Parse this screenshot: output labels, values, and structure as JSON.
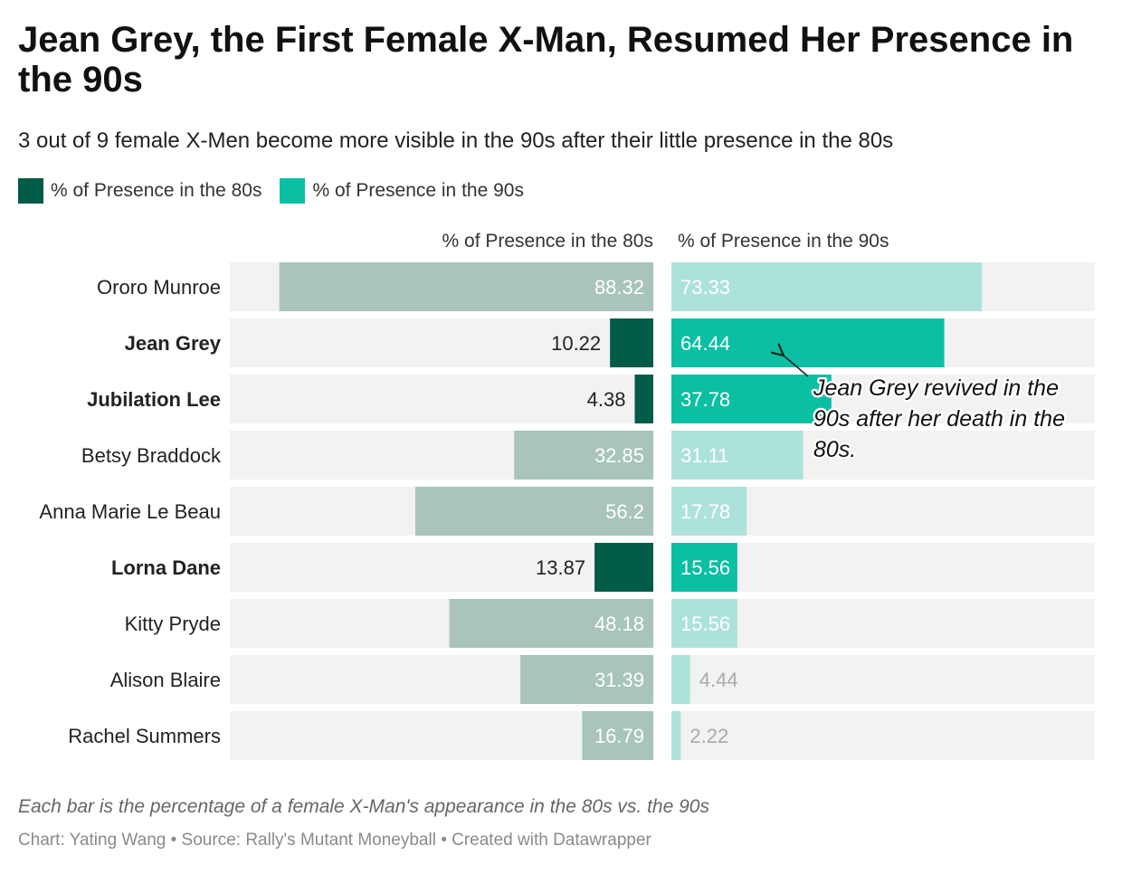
{
  "title": "Jean Grey, the First Female X-Man, Resumed Her Presence in the 90s",
  "subtitle": "3 out of 9 female X-Men become more visible in the 90s after their little presence in the 80s",
  "legend": {
    "items": [
      {
        "label": "% of Presence in the 80s",
        "color": "#005b47"
      },
      {
        "label": "% of Presence in the 90s",
        "color": "#0abfa2"
      }
    ]
  },
  "chart_data": {
    "type": "bar",
    "columns": [
      {
        "name": "% of Presence in the 80s",
        "xlim": [
          0,
          100
        ]
      },
      {
        "name": "% of Presence in the 90s",
        "xlim": [
          0,
          100
        ]
      }
    ],
    "categories": [
      "Ororo Munroe",
      "Jean Grey",
      "Jubilation Lee",
      "Betsy Braddock",
      "Anna Marie Le Beau",
      "Lorna Dane",
      "Kitty Pryde",
      "Alison Blaire",
      "Rachel Summers"
    ],
    "highlighted": [
      "Jean Grey",
      "Jubilation Lee",
      "Lorna Dane"
    ],
    "series": [
      {
        "name": "% of Presence in the 80s",
        "values": [
          88.32,
          10.22,
          4.38,
          32.85,
          56.2,
          13.87,
          48.18,
          31.39,
          16.79
        ]
      },
      {
        "name": "% of Presence in the 90s",
        "values": [
          73.33,
          64.44,
          37.78,
          31.11,
          17.78,
          15.56,
          15.56,
          4.44,
          2.22
        ]
      }
    ],
    "colors": {
      "highlight_80s": "#005b47",
      "highlight_90s": "#0abfa2",
      "muted_80s": "#a8c4bc",
      "muted_90s": "#ade2da",
      "track": "#f2f2f2"
    },
    "annotation": {
      "text_lines": [
        "Jean Grey revived in the",
        "90s after her death in the",
        "80s."
      ],
      "target": "Jean Grey"
    }
  },
  "notes": "Each bar is the percentage of a female X-Man's appearance in the 80s vs. the 90s",
  "footer": "Chart: Yating Wang  • Source: Rally's Mutant Moneyball • Created with Datawrapper"
}
